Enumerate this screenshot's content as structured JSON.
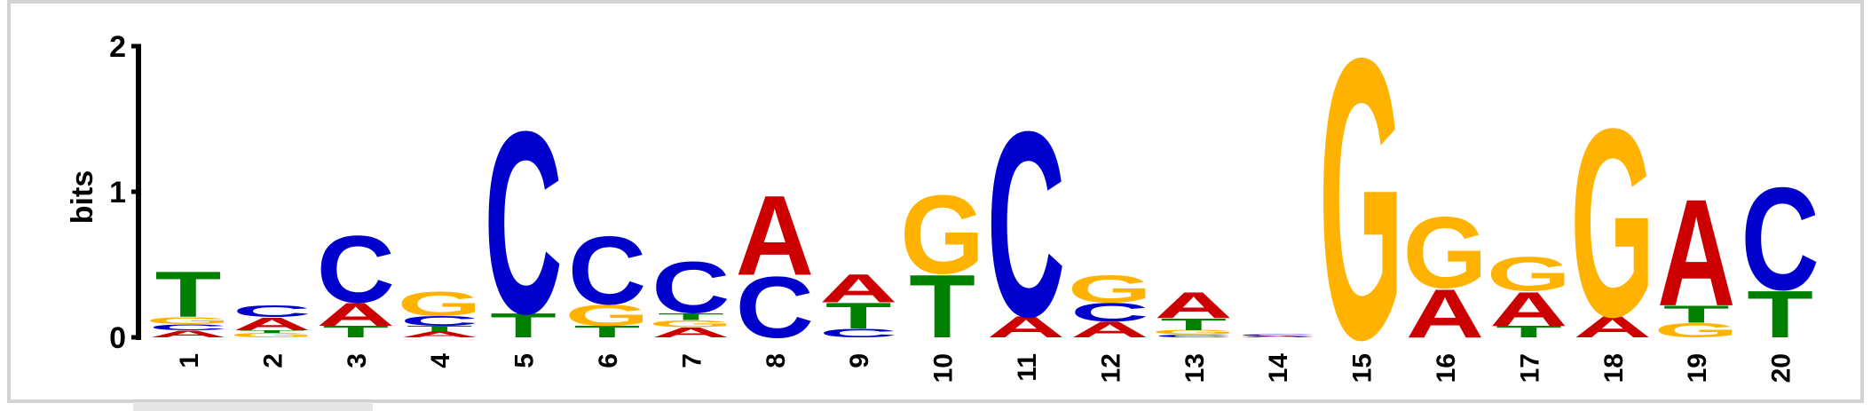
{
  "chart_data": {
    "type": "sequence-logo",
    "ylabel": "bits",
    "ylim": [
      0,
      2
    ],
    "yticks": [
      "0",
      "1",
      "2"
    ],
    "colors": {
      "A": "#cc0000",
      "C": "#0000cc",
      "G": "#ffb300",
      "T": "#008000"
    },
    "positions": [
      {
        "label": "1",
        "letters": [
          [
            "A",
            0.05
          ],
          [
            "C",
            0.04
          ],
          [
            "G",
            0.05
          ],
          [
            "T",
            0.32
          ]
        ]
      },
      {
        "label": "2",
        "letters": [
          [
            "G",
            0.03
          ],
          [
            "T",
            0.02
          ],
          [
            "A",
            0.09
          ],
          [
            "C",
            0.08
          ]
        ]
      },
      {
        "label": "3",
        "letters": [
          [
            "T",
            0.08
          ],
          [
            "A",
            0.16
          ],
          [
            "C",
            0.47
          ]
        ]
      },
      {
        "label": "4",
        "letters": [
          [
            "A",
            0.04
          ],
          [
            "T",
            0.04
          ],
          [
            "C",
            0.07
          ],
          [
            "G",
            0.17
          ]
        ]
      },
      {
        "label": "5",
        "letters": [
          [
            "T",
            0.17
          ],
          [
            "C",
            1.28
          ]
        ]
      },
      {
        "label": "6",
        "letters": [
          [
            "T",
            0.08
          ],
          [
            "G",
            0.15
          ],
          [
            "C",
            0.48
          ]
        ]
      },
      {
        "label": "7",
        "letters": [
          [
            "A",
            0.07
          ],
          [
            "G",
            0.05
          ],
          [
            "T",
            0.05
          ],
          [
            "C",
            0.36
          ]
        ]
      },
      {
        "label": "8",
        "letters": [
          [
            "C",
            0.43
          ],
          [
            "A",
            0.56
          ]
        ]
      },
      {
        "label": "9",
        "letters": [
          [
            "C",
            0.06
          ],
          [
            "T",
            0.18
          ],
          [
            "A",
            0.2
          ]
        ]
      },
      {
        "label": "10",
        "letters": [
          [
            "T",
            0.44
          ],
          [
            "G",
            0.55
          ]
        ]
      },
      {
        "label": "11",
        "letters": [
          [
            "A",
            0.15
          ],
          [
            "C",
            1.3
          ]
        ]
      },
      {
        "label": "12",
        "letters": [
          [
            "A",
            0.11
          ],
          [
            "C",
            0.13
          ],
          [
            "G",
            0.19
          ]
        ]
      },
      {
        "label": "13",
        "letters": [
          [
            "C",
            0.02
          ],
          [
            "G",
            0.03
          ],
          [
            "T",
            0.08
          ],
          [
            "A",
            0.18
          ]
        ]
      },
      {
        "label": "14",
        "letters": [
          [
            "A",
            0.01
          ],
          [
            "C",
            0.01
          ]
        ]
      },
      {
        "label": "15",
        "letters": [
          [
            "G",
            1.97
          ]
        ]
      },
      {
        "label": "16",
        "letters": [
          [
            "A",
            0.34
          ],
          [
            "G",
            0.5
          ]
        ]
      },
      {
        "label": "17",
        "letters": [
          [
            "T",
            0.08
          ],
          [
            "A",
            0.24
          ],
          [
            "G",
            0.24
          ]
        ]
      },
      {
        "label": "18",
        "letters": [
          [
            "A",
            0.15
          ],
          [
            "G",
            1.32
          ]
        ]
      },
      {
        "label": "19",
        "letters": [
          [
            "G",
            0.1
          ],
          [
            "T",
            0.12
          ],
          [
            "A",
            0.75
          ]
        ]
      },
      {
        "label": "20",
        "letters": [
          [
            "T",
            0.33
          ],
          [
            "C",
            0.72
          ]
        ]
      }
    ]
  }
}
